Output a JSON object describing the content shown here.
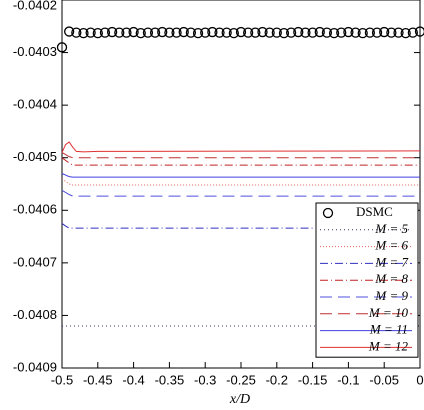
{
  "chart_data": {
    "type": "line",
    "x_label": "x/D",
    "xlim": [
      -0.5,
      0
    ],
    "xticks": [
      -0.5,
      -0.45,
      -0.4,
      -0.35,
      -0.3,
      -0.25,
      -0.2,
      -0.15,
      -0.1,
      -0.05,
      0
    ],
    "ylim": [
      -0.0409,
      -0.0402
    ],
    "yticks": [
      -0.0409,
      -0.0408,
      -0.0407,
      -0.0406,
      -0.0405,
      -0.0404,
      -0.0403,
      -0.0402
    ],
    "legend": "lower right",
    "scatter": {
      "name": "DSMC",
      "color": "#000000",
      "x": [
        -0.5,
        -0.49,
        -0.48,
        -0.47,
        -0.46,
        -0.45,
        -0.44,
        -0.43,
        -0.42,
        -0.41,
        -0.4,
        -0.39,
        -0.38,
        -0.37,
        -0.36,
        -0.35,
        -0.34,
        -0.33,
        -0.32,
        -0.31,
        -0.3,
        -0.29,
        -0.28,
        -0.27,
        -0.26,
        -0.25,
        -0.24,
        -0.23,
        -0.22,
        -0.21,
        -0.2,
        -0.19,
        -0.18,
        -0.17,
        -0.16,
        -0.15,
        -0.14,
        -0.13,
        -0.12,
        -0.11,
        -0.1,
        -0.09,
        -0.08,
        -0.07,
        -0.06,
        -0.05,
        -0.04,
        -0.03,
        -0.02,
        -0.01,
        0
      ],
      "values": [
        -0.04029,
        -0.04026,
        -0.040262,
        -0.040263,
        -0.040262,
        -0.040263,
        -0.040262,
        -0.040261,
        -0.040262,
        -0.040262,
        -0.040261,
        -0.040263,
        -0.040262,
        -0.040262,
        -0.040261,
        -0.040262,
        -0.040262,
        -0.040261,
        -0.040262,
        -0.040263,
        -0.040262,
        -0.040261,
        -0.040262,
        -0.040262,
        -0.040263,
        -0.040261,
        -0.040262,
        -0.040262,
        -0.040261,
        -0.040262,
        -0.040262,
        -0.040263,
        -0.040262,
        -0.040261,
        -0.040262,
        -0.040262,
        -0.040261,
        -0.040262,
        -0.040263,
        -0.040262,
        -0.040261,
        -0.040262,
        -0.040263,
        -0.040262,
        -0.040262,
        -0.040261,
        -0.040262,
        -0.040262,
        -0.040263,
        -0.040262,
        -0.04026
      ]
    },
    "x": [
      -0.5,
      -0.495,
      -0.49,
      -0.485,
      -0.48,
      -0.47,
      -0.45,
      0
    ],
    "series": [
      {
        "name": "M = 5",
        "color": "#333366",
        "dash": "1,3",
        "values": [
          -0.04082,
          -0.04082,
          -0.04082,
          -0.04082,
          -0.04082,
          -0.04082,
          -0.04082,
          -0.04082
        ]
      },
      {
        "name": "M = 6",
        "color": "#e06060",
        "dash": "1,2",
        "values": [
          -0.04054,
          -0.040545,
          -0.04055,
          -0.040552,
          -0.040552,
          -0.040552,
          -0.040552,
          -0.040552
        ]
      },
      {
        "name": "M = 7",
        "color": "#3030c0",
        "dash": "8,3,1,3",
        "values": [
          -0.040625,
          -0.04063,
          -0.040634,
          -0.040634,
          -0.040634,
          -0.040634,
          -0.040634,
          -0.040634
        ]
      },
      {
        "name": "M = 8",
        "color": "#c02020",
        "dash": "8,3,1,3",
        "values": [
          -0.0405,
          -0.040505,
          -0.04051,
          -0.040514,
          -0.040514,
          -0.040514,
          -0.040514,
          -0.040514
        ]
      },
      {
        "name": "M = 9",
        "color": "#5050e0",
        "dash": "12,6",
        "values": [
          -0.040562,
          -0.040566,
          -0.04057,
          -0.040573,
          -0.040573,
          -0.040573,
          -0.040573,
          -0.040573
        ]
      },
      {
        "name": "M = 10",
        "color": "#c03030",
        "dash": "12,6",
        "values": [
          -0.04049,
          -0.040494,
          -0.040498,
          -0.0405,
          -0.0405,
          -0.0405,
          -0.0405,
          -0.0405
        ]
      },
      {
        "name": "M = 11",
        "color": "#4040e0",
        "dash": "",
        "values": [
          -0.04053,
          -0.040533,
          -0.040536,
          -0.040537,
          -0.040537,
          -0.040537,
          -0.040537,
          -0.040537
        ]
      },
      {
        "name": "M = 12",
        "color": "#e03030",
        "dash": "",
        "values": [
          -0.04049,
          -0.040475,
          -0.04047,
          -0.04048,
          -0.040488,
          -0.040489,
          -0.040488,
          -0.040487
        ]
      }
    ]
  }
}
